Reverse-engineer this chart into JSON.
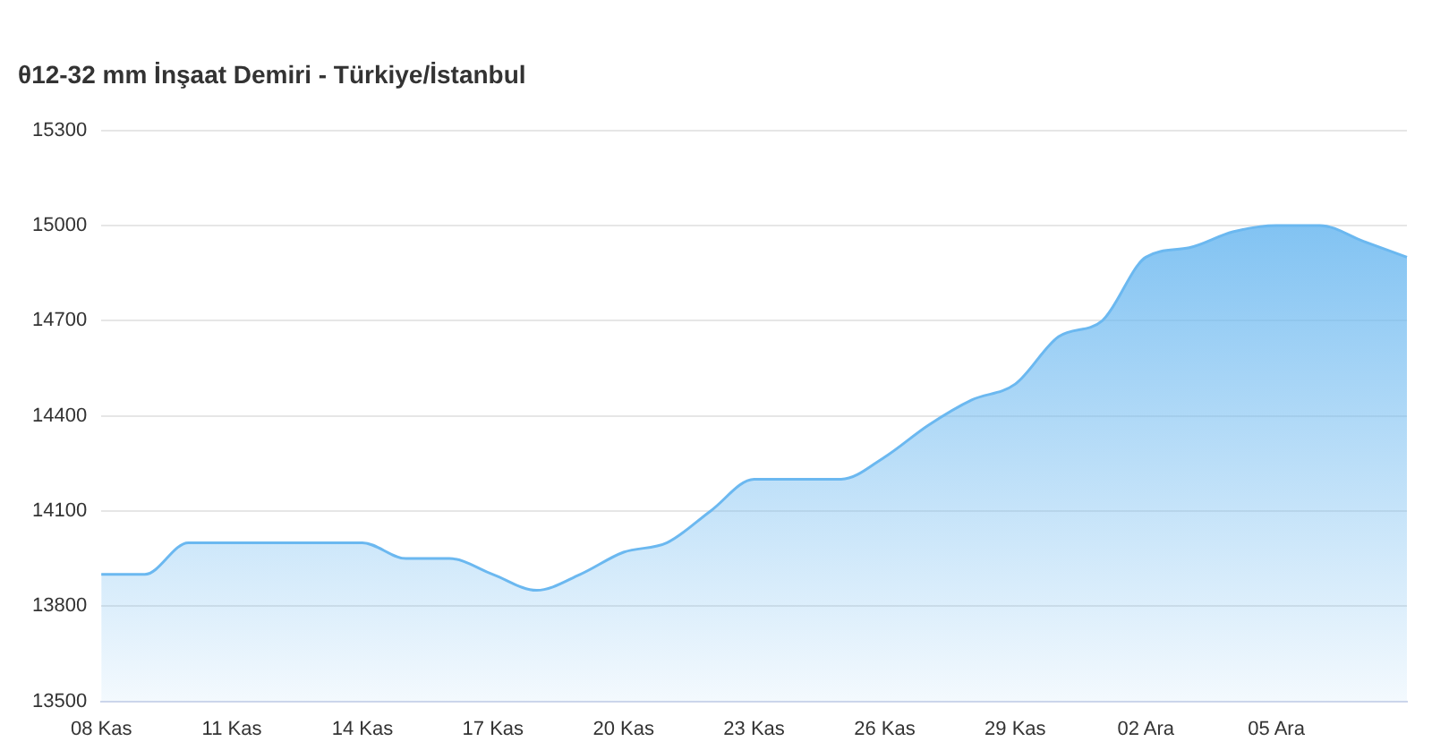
{
  "chart_data": {
    "type": "area",
    "title": "θ12-32 mm İnşaat Demiri - Türkiye/İstanbul",
    "categories": [
      "08 Kas",
      null,
      null,
      "11 Kas",
      null,
      null,
      "14 Kas",
      null,
      null,
      "17 Kas",
      null,
      null,
      "20 Kas",
      null,
      null,
      "23 Kas",
      null,
      null,
      "26 Kas",
      null,
      null,
      "29 Kas",
      null,
      null,
      "02 Ara",
      null,
      null,
      "05 Ara",
      null,
      null,
      null
    ],
    "series": [
      {
        "color": "#6bb8f0",
        "values": [
          13900,
          13900,
          14000,
          14000,
          14000,
          14000,
          14000,
          13950,
          13950,
          13900,
          13850,
          13900,
          13970,
          14000,
          14100,
          14200,
          14200,
          14200,
          14270,
          14370,
          14450,
          14500,
          14650,
          14700,
          14900,
          14930,
          14980,
          15000,
          15000,
          14950,
          14900
        ]
      }
    ],
    "ylim": [
      13500,
      15300
    ],
    "yticks": [
      13500,
      13800,
      14100,
      14400,
      14700,
      15000,
      15300
    ],
    "grid": "y",
    "legend": false,
    "marker": "none"
  }
}
